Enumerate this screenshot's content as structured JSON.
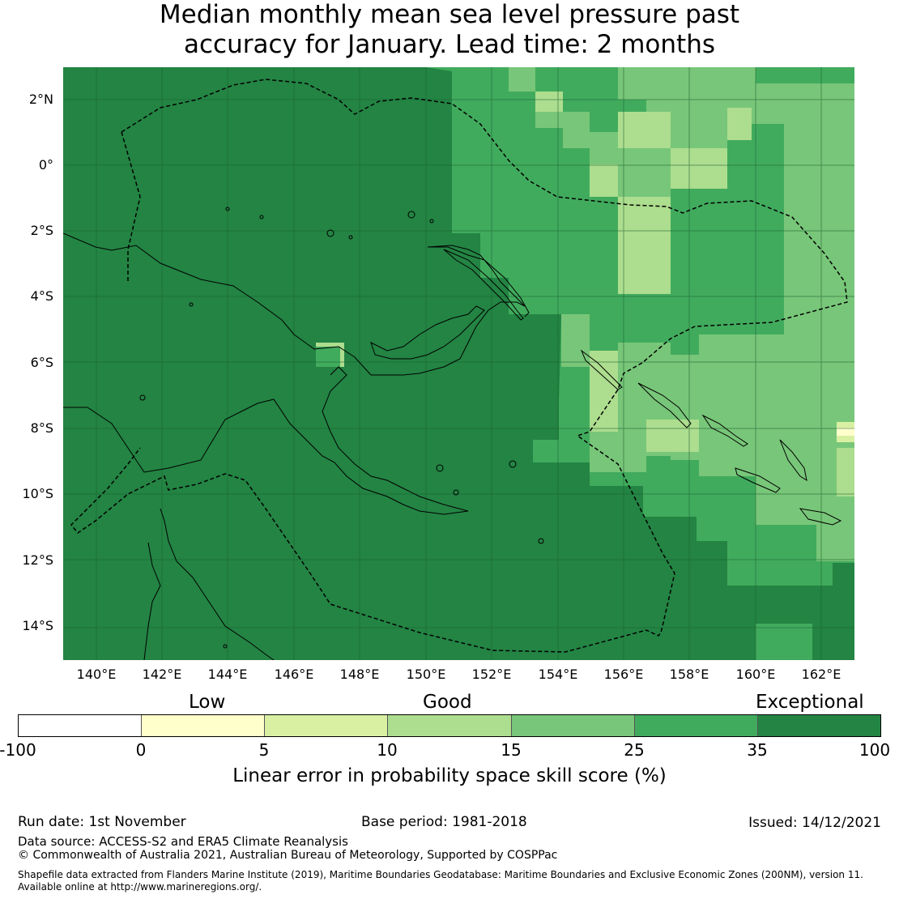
{
  "title": {
    "line1": "Median monthly mean sea level pressure past",
    "line2": "accuracy for January. Lead time: 2 months"
  },
  "map": {
    "lat_labels": [
      "2°N",
      "0°",
      "2°S",
      "4°S",
      "6°S",
      "8°S",
      "10°S",
      "12°S",
      "14°S"
    ],
    "lon_labels": [
      "140°E",
      "142°E",
      "144°E",
      "146°E",
      "148°E",
      "150°E",
      "152°E",
      "154°E",
      "156°E",
      "158°E",
      "160°E",
      "162°E"
    ],
    "extent": {
      "lon": [
        139,
        163
      ],
      "lat": [
        -15,
        3
      ]
    },
    "region_description_colors": {
      "exceptional": "#238443",
      "very_good": "#41ab5d",
      "good_high": "#78c679",
      "good": "#addd8e",
      "low_good": "#d9f0a3",
      "low": "#ffffcc",
      "none": "#ffffff"
    }
  },
  "legend": {
    "categories": [
      "Low",
      "Good",
      "Exceptional"
    ],
    "ticks": [
      "-100",
      "0",
      "5",
      "10",
      "15",
      "25",
      "35",
      "100"
    ],
    "colors": [
      "#ffffff",
      "#ffffcc",
      "#d9f0a3",
      "#addd8e",
      "#78c679",
      "#41ab5d",
      "#238443"
    ],
    "label": "Linear error in probability space skill score (%)"
  },
  "footer": {
    "run_date": "Run date: 1st November",
    "base_period": "Base period: 1981-2018",
    "issued": "Issued: 14/12/2021",
    "data_source": "Data source: ACCESS-S2 and ERA5 Climate Reanalysis",
    "copyright": "© Commonwealth of Australia 2021, Australian Bureau of Meteorology, Supported by COSPPac",
    "shapefile_line1": "Shapefile data extracted from Flanders Marine Institute (2019), Maritime Boundaries Geodatabase: Maritime Boundaries and Exclusive Economic Zones (200NM), version 11.",
    "shapefile_line2": "Available online at http://www.marineregions.org/."
  }
}
